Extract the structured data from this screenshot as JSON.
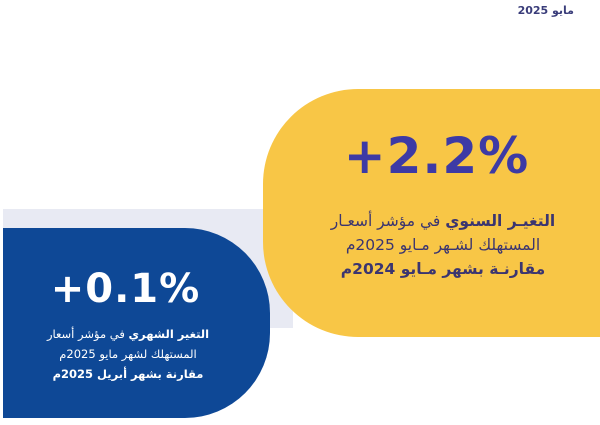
{
  "header": {
    "date": "مايو 2025"
  },
  "annual": {
    "value": "+2.2%",
    "line1_bold": "التغيـر السنوي",
    "line1_rest": " في مؤشر أسعـار",
    "line2": "المستهلك لشـهر مـايو 2025م",
    "line3": "مقارنـة بشهر مـايو 2024م"
  },
  "monthly": {
    "value": "+0.1%",
    "line1_bold": "التغير الشهري",
    "line1_rest": " في مؤشر أسعار",
    "line2": "المستهلك لشهر مايو 2025م",
    "line3": "مقارنة بشهر أبريل 2025م"
  },
  "colors": {
    "yellow": "#f8c646",
    "blue": "#0e4896",
    "accent_text": "#3d3aa5",
    "band": "#e8eaf3"
  }
}
